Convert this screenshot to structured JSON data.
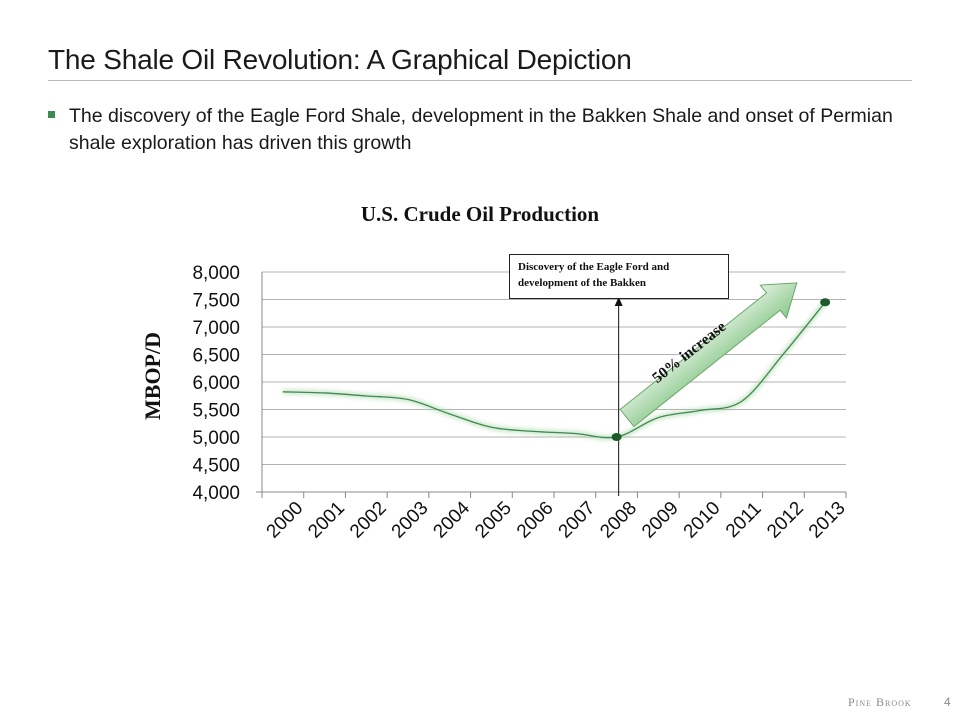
{
  "slide": {
    "title": "The Shale Oil Revolution: A Graphical Depiction",
    "bullet": "The discovery of the Eagle Ford Shale, development in the Bakken Shale and onset of Permian shale exploration has driven this growth",
    "footer_brand": "Pine Brook",
    "page_number": "4"
  },
  "colors": {
    "line": "#3d8b4f",
    "grid": "#b3b3b3",
    "arrow_top": "#dff0df",
    "arrow_bottom": "#8cc98c",
    "accent": "#3d8b4f"
  },
  "chart_data": {
    "type": "line",
    "title": "U.S. Crude Oil Production",
    "xlabel": "",
    "ylabel": "MBOP/D",
    "ylim": [
      4000,
      8000
    ],
    "ytick_step": 500,
    "ytick_labels": [
      "4,000",
      "4,500",
      "5,000",
      "5,500",
      "6,000",
      "6,500",
      "7,000",
      "7,500",
      "8,000"
    ],
    "categories": [
      "2000",
      "2001",
      "2002",
      "2003",
      "2004",
      "2005",
      "2006",
      "2007",
      "2008",
      "2009",
      "2010",
      "2011",
      "2012",
      "2013"
    ],
    "series": [
      {
        "name": "U.S. Crude Oil Production",
        "values": [
          5822,
          5801,
          5746,
          5681,
          5419,
          5178,
          5102,
          5064,
          5000,
          5353,
          5481,
          5650,
          6510,
          7450
        ]
      }
    ],
    "grid": true,
    "highlight_points": [
      "2008",
      "2013"
    ],
    "annotations": {
      "discovery_line_at": "2008",
      "discovery_label_line1": "Discovery of the Eagle Ford and",
      "discovery_label_line2": "development of the Bakken",
      "increase_label": "50% increase"
    }
  }
}
